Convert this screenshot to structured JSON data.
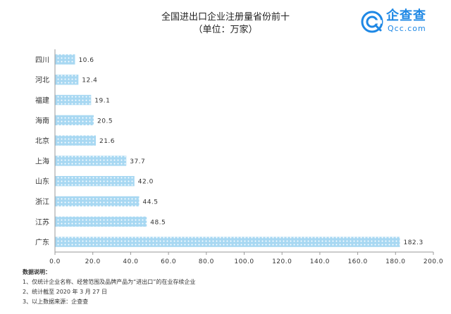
{
  "chart_data": {
    "type": "bar",
    "orientation": "horizontal",
    "title": "全国进出口企业注册量省份前十",
    "subtitle": "（单位：万家）",
    "categories": [
      "四川",
      "河北",
      "福建",
      "海南",
      "北京",
      "上海",
      "山东",
      "浙江",
      "江苏",
      "广东"
    ],
    "values": [
      10.6,
      12.4,
      19.1,
      20.5,
      21.6,
      37.7,
      42.0,
      44.5,
      48.5,
      182.3
    ],
    "value_labels": [
      "10.6",
      "12.4",
      "19.1",
      "20.5",
      "21.6",
      "37.7",
      "42.0",
      "44.5",
      "48.5",
      "182.3"
    ],
    "xlim": [
      0,
      200
    ],
    "x_ticks": [
      "0.0",
      "20.0",
      "40.0",
      "60.0",
      "80.0",
      "100.0",
      "120.0",
      "140.0",
      "160.0",
      "180.0",
      "200.0"
    ],
    "xlabel": "",
    "ylabel": "",
    "grid": false,
    "legend": "none",
    "bar_color": "#a8d8f2",
    "bar_dot_color": "#ffffff"
  },
  "logo": {
    "name": "企查查",
    "domain": "Qcc.com",
    "color": "#1e88e5"
  },
  "notes": {
    "title": "数据说明：",
    "lines": [
      "1、仅统计企业名称、经营范围及品牌产品为“进出口”的在业存续企业",
      "2、统计截至 2020 年 3 月 27 日",
      "3、以上数据来源：企查查"
    ]
  }
}
